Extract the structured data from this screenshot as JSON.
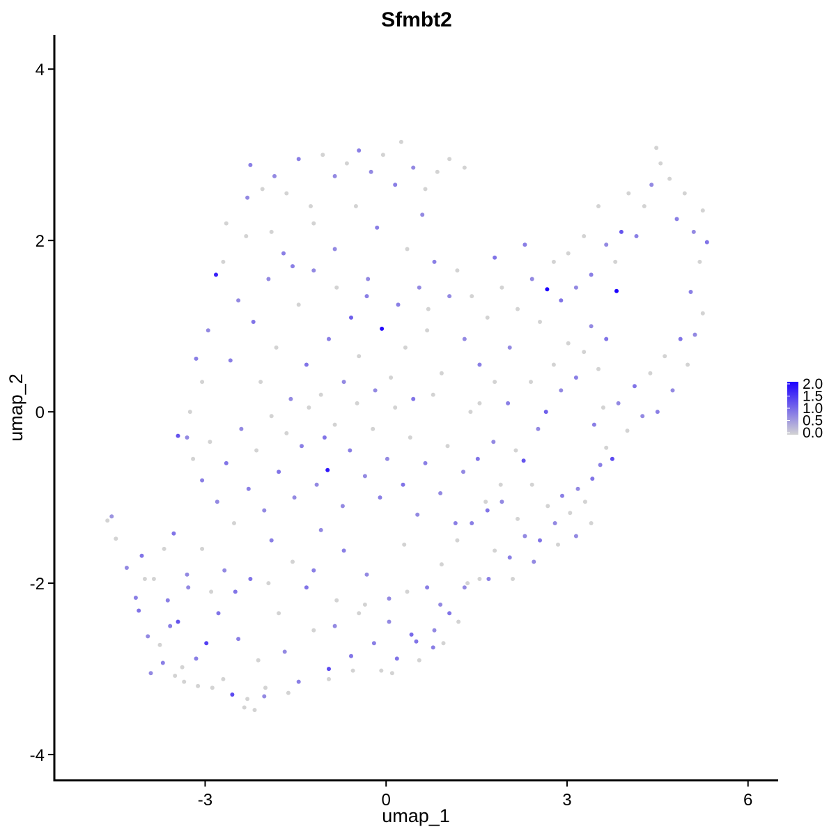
{
  "chart_data": {
    "type": "scatter",
    "title": "Sfmbt2",
    "xlabel": "umap_1",
    "ylabel": "umap_2",
    "xlim": [
      -5.5,
      6.5
    ],
    "ylim": [
      -4.3,
      4.4
    ],
    "xticks": [
      -3,
      0,
      3,
      6
    ],
    "xtick_labels": [
      "-3",
      "0",
      "3",
      "6"
    ],
    "yticks": [
      -4,
      -2,
      0,
      2,
      4
    ],
    "ytick_labels": [
      "-4",
      "-2",
      "0",
      "2",
      "4"
    ],
    "grid": false,
    "legend": {
      "placement": "right",
      "type": "colorbar",
      "labels": [
        "2.0",
        "1.5",
        "1.0",
        "0.5",
        "0.0"
      ],
      "values": [
        2.0,
        1.5,
        1.0,
        0.5,
        0.0
      ],
      "low_color": "#d3d3d3",
      "high_color": "#1c00ff"
    },
    "points": [
      [
        -4.62,
        -1.27,
        0.0
      ],
      [
        -4.55,
        -1.22,
        0.6
      ],
      [
        -4.48,
        -1.48,
        0.0
      ],
      [
        -4.3,
        -1.82,
        0.7
      ],
      [
        -4.15,
        -2.17,
        0.8
      ],
      [
        -4.05,
        -1.68,
        0.9
      ],
      [
        -3.95,
        -2.62,
        0.7
      ],
      [
        -3.85,
        -1.95,
        0.0
      ],
      [
        -3.75,
        -2.72,
        0.0
      ],
      [
        -3.62,
        -2.2,
        0.8
      ],
      [
        -3.52,
        -1.42,
        0.9
      ],
      [
        -3.45,
        -2.45,
        1.2
      ],
      [
        -3.38,
        -2.98,
        0.0
      ],
      [
        -3.28,
        -2.05,
        0.7
      ],
      [
        -3.15,
        -2.88,
        0.8
      ],
      [
        -3.05,
        -1.6,
        0.0
      ],
      [
        -2.98,
        -2.7,
        1.4
      ],
      [
        -2.88,
        -3.22,
        0.0
      ],
      [
        -2.78,
        -2.35,
        0.9
      ],
      [
        -2.68,
        -1.85,
        0.7
      ],
      [
        -2.55,
        -3.3,
        1.3
      ],
      [
        -2.45,
        -2.65,
        0.8
      ],
      [
        -2.35,
        -3.45,
        0.0
      ],
      [
        -2.25,
        -1.95,
        0.9
      ],
      [
        -2.12,
        -2.9,
        0.0
      ],
      [
        -2.02,
        -3.32,
        0.7
      ],
      [
        -1.9,
        -1.5,
        0.8
      ],
      [
        -1.78,
        -2.35,
        0.0
      ],
      [
        -1.68,
        -2.8,
        0.7
      ],
      [
        -1.55,
        -1.75,
        0.0
      ],
      [
        -1.45,
        -3.15,
        0.8
      ],
      [
        -1.32,
        -2.05,
        0.9
      ],
      [
        -1.2,
        -2.55,
        0.0
      ],
      [
        -1.08,
        -1.38,
        0.7
      ],
      [
        -0.95,
        -3.0,
        1.3
      ],
      [
        -0.82,
        -2.2,
        0.0
      ],
      [
        -0.7,
        -1.62,
        0.8
      ],
      [
        -0.58,
        -2.85,
        0.9
      ],
      [
        -0.45,
        -2.35,
        0.0
      ],
      [
        -0.32,
        -1.9,
        0.7
      ],
      [
        -0.2,
        -2.7,
        0.8
      ],
      [
        -0.08,
        -3.02,
        0.0
      ],
      [
        0.05,
        -2.18,
        0.7
      ],
      [
        0.18,
        -2.88,
        0.9
      ],
      [
        0.3,
        -1.55,
        0.0
      ],
      [
        0.42,
        -2.6,
        1.0
      ],
      [
        0.55,
        -2.9,
        0.0
      ],
      [
        0.68,
        -2.05,
        0.8
      ],
      [
        0.8,
        -2.55,
        0.7
      ],
      [
        0.92,
        -1.78,
        0.0
      ],
      [
        1.05,
        -2.35,
        0.9
      ],
      [
        1.18,
        -1.5,
        0.0
      ],
      [
        1.3,
        -2.05,
        0.7
      ],
      [
        1.42,
        -1.3,
        0.8
      ],
      [
        1.55,
        -1.95,
        0.0
      ],
      [
        1.68,
        -1.15,
        0.9
      ],
      [
        1.8,
        -1.62,
        0.0
      ],
      [
        1.92,
        -1.05,
        0.7
      ],
      [
        2.05,
        -1.7,
        0.8
      ],
      [
        2.18,
        -1.25,
        0.0
      ],
      [
        2.3,
        -1.45,
        0.7
      ],
      [
        2.42,
        -0.85,
        0.0
      ],
      [
        2.55,
        -1.5,
        0.9
      ],
      [
        2.68,
        -1.1,
        0.0
      ],
      [
        2.8,
        -1.3,
        0.7
      ],
      [
        2.92,
        -0.98,
        0.8
      ],
      [
        3.05,
        -1.18,
        0.0
      ],
      [
        3.18,
        -0.9,
        0.7
      ],
      [
        3.3,
        -1.05,
        0.0
      ],
      [
        3.42,
        -0.78,
        0.9
      ],
      [
        3.55,
        -0.62,
        0.8
      ],
      [
        3.65,
        -0.42,
        0.0
      ],
      [
        3.75,
        -0.55,
        1.3
      ],
      [
        3.45,
        -0.15,
        0.8
      ],
      [
        3.6,
        0.05,
        0.0
      ],
      [
        3.85,
        0.1,
        0.7
      ],
      [
        4.0,
        -0.22,
        0.0
      ],
      [
        4.12,
        0.3,
        0.9
      ],
      [
        4.25,
        -0.05,
        0.7
      ],
      [
        4.38,
        0.45,
        0.0
      ],
      [
        4.5,
        0.0,
        0.8
      ],
      [
        4.62,
        0.65,
        0.0
      ],
      [
        4.75,
        0.25,
        0.7
      ],
      [
        4.88,
        0.85,
        0.9
      ],
      [
        5.0,
        0.55,
        0.0
      ],
      [
        5.12,
        0.9,
        0.7
      ],
      [
        5.25,
        1.15,
        0.0
      ],
      [
        5.05,
        1.4,
        0.8
      ],
      [
        5.2,
        1.75,
        0.0
      ],
      [
        5.32,
        1.98,
        0.9
      ],
      [
        5.25,
        2.35,
        0.0
      ],
      [
        5.1,
        2.1,
        0.7
      ],
      [
        4.95,
        2.55,
        0.0
      ],
      [
        4.82,
        2.25,
        0.8
      ],
      [
        4.7,
        2.72,
        0.0
      ],
      [
        4.55,
        2.9,
        0.0
      ],
      [
        4.48,
        3.08,
        0.0
      ],
      [
        4.4,
        2.65,
        0.7
      ],
      [
        4.28,
        2.4,
        0.0
      ],
      [
        4.15,
        2.05,
        0.8
      ],
      [
        4.02,
        2.55,
        0.0
      ],
      [
        3.9,
        2.1,
        1.2
      ],
      [
        3.8,
        1.75,
        0.0
      ],
      [
        3.82,
        1.41,
        2.0
      ],
      [
        3.65,
        1.95,
        0.7
      ],
      [
        3.52,
        2.4,
        0.0
      ],
      [
        3.4,
        1.6,
        0.8
      ],
      [
        3.28,
        2.05,
        0.0
      ],
      [
        3.15,
        1.45,
        0.7
      ],
      [
        3.02,
        1.85,
        0.0
      ],
      [
        2.9,
        1.3,
        0.9
      ],
      [
        2.78,
        1.75,
        0.0
      ],
      [
        2.67,
        1.43,
        2.0
      ],
      [
        2.55,
        1.05,
        0.0
      ],
      [
        2.42,
        1.55,
        0.7
      ],
      [
        2.3,
        1.95,
        0.8
      ],
      [
        2.18,
        1.2,
        0.0
      ],
      [
        2.05,
        0.75,
        0.7
      ],
      [
        1.92,
        1.45,
        0.0
      ],
      [
        1.8,
        1.8,
        0.9
      ],
      [
        1.68,
        1.1,
        0.0
      ],
      [
        1.55,
        0.55,
        0.8
      ],
      [
        1.42,
        1.35,
        0.0
      ],
      [
        1.3,
        0.85,
        0.7
      ],
      [
        1.18,
        1.65,
        0.0
      ],
      [
        1.05,
        1.35,
        0.7
      ],
      [
        0.92,
        0.45,
        0.0
      ],
      [
        0.8,
        1.75,
        0.8
      ],
      [
        0.68,
        0.95,
        0.0
      ],
      [
        0.55,
        1.45,
        0.7
      ],
      [
        0.45,
        0.15,
        0.9
      ],
      [
        0.32,
        0.75,
        0.0
      ],
      [
        0.2,
        1.25,
        0.8
      ],
      [
        0.08,
        0.4,
        0.0
      ],
      [
        -0.07,
        0.97,
        1.9
      ],
      [
        -0.18,
        0.25,
        0.7
      ],
      [
        -0.32,
        1.35,
        0.8
      ],
      [
        -0.45,
        0.65,
        0.0
      ],
      [
        -0.58,
        1.1,
        1.1
      ],
      [
        -0.7,
        0.35,
        0.7
      ],
      [
        -0.82,
        1.45,
        0.0
      ],
      [
        -0.95,
        0.85,
        0.8
      ],
      [
        -1.08,
        0.2,
        0.0
      ],
      [
        -1.2,
        1.65,
        0.7
      ],
      [
        -1.32,
        0.55,
        0.9
      ],
      [
        -1.45,
        1.25,
        0.0
      ],
      [
        -1.58,
        0.15,
        0.7
      ],
      [
        -1.7,
        1.85,
        0.8
      ],
      [
        -1.82,
        0.75,
        0.0
      ],
      [
        -1.95,
        1.55,
        0.7
      ],
      [
        -2.08,
        0.35,
        0.0
      ],
      [
        -2.2,
        1.05,
        0.9
      ],
      [
        -2.32,
        2.05,
        0.0
      ],
      [
        -2.45,
        1.3,
        0.7
      ],
      [
        -2.58,
        0.6,
        0.8
      ],
      [
        -2.7,
        1.75,
        0.0
      ],
      [
        -2.82,
        1.6,
        1.7
      ],
      [
        -2.95,
        0.95,
        0.7
      ],
      [
        -3.05,
        0.35,
        0.0
      ],
      [
        -3.15,
        0.62,
        0.8
      ],
      [
        -3.25,
        0.0,
        0.0
      ],
      [
        -3.3,
        -0.3,
        0.7
      ],
      [
        -3.45,
        -0.28,
        1.2
      ],
      [
        -3.2,
        -0.55,
        0.0
      ],
      [
        -3.05,
        -0.8,
        0.8
      ],
      [
        -2.92,
        -0.35,
        0.0
      ],
      [
        -2.8,
        -1.05,
        0.7
      ],
      [
        -2.65,
        -0.6,
        0.9
      ],
      [
        -2.52,
        -1.3,
        0.0
      ],
      [
        -2.4,
        -0.2,
        0.7
      ],
      [
        -2.28,
        -0.9,
        0.8
      ],
      [
        -2.15,
        -0.45,
        0.0
      ],
      [
        -2.02,
        -1.15,
        0.7
      ],
      [
        -1.9,
        -0.05,
        0.0
      ],
      [
        -1.78,
        -0.7,
        0.9
      ],
      [
        -1.65,
        -0.25,
        0.0
      ],
      [
        -1.52,
        -1.0,
        0.7
      ],
      [
        -1.4,
        -0.4,
        0.8
      ],
      [
        -1.28,
        0.05,
        0.0
      ],
      [
        -1.15,
        -0.85,
        0.7
      ],
      [
        -1.02,
        -0.3,
        0.9
      ],
      [
        -0.97,
        -0.68,
        1.8
      ],
      [
        -0.85,
        -0.15,
        0.0
      ],
      [
        -0.72,
        -1.1,
        0.7
      ],
      [
        -0.6,
        -0.45,
        0.8
      ],
      [
        -0.48,
        0.1,
        0.0
      ],
      [
        -0.35,
        -0.75,
        0.7
      ],
      [
        -0.22,
        -0.2,
        0.0
      ],
      [
        -0.1,
        -1.0,
        0.8
      ],
      [
        0.02,
        -0.55,
        0.7
      ],
      [
        0.15,
        0.05,
        0.0
      ],
      [
        0.28,
        -0.85,
        0.9
      ],
      [
        0.4,
        -0.3,
        0.0
      ],
      [
        0.52,
        -1.2,
        0.7
      ],
      [
        0.65,
        -0.6,
        0.8
      ],
      [
        0.78,
        0.2,
        0.0
      ],
      [
        0.9,
        -0.95,
        0.7
      ],
      [
        1.02,
        -0.4,
        0.0
      ],
      [
        1.15,
        -1.3,
        0.8
      ],
      [
        1.28,
        -0.7,
        0.7
      ],
      [
        1.4,
        0.0,
        0.0
      ],
      [
        1.52,
        -0.55,
        0.9
      ],
      [
        1.65,
        -1.05,
        0.0
      ],
      [
        1.78,
        -0.35,
        0.7
      ],
      [
        1.9,
        -0.85,
        0.0
      ],
      [
        2.02,
        0.1,
        0.8
      ],
      [
        2.15,
        -0.45,
        0.0
      ],
      [
        2.28,
        -0.57,
        1.2
      ],
      [
        2.4,
        0.35,
        0.0
      ],
      [
        2.52,
        -0.2,
        0.7
      ],
      [
        2.65,
        0.0,
        1.1
      ],
      [
        2.78,
        0.55,
        0.0
      ],
      [
        2.9,
        0.25,
        0.7
      ],
      [
        3.02,
        0.8,
        0.0
      ],
      [
        3.15,
        0.4,
        0.8
      ],
      [
        3.28,
        0.7,
        0.0
      ],
      [
        3.4,
        1.0,
        0.7
      ],
      [
        3.52,
        0.5,
        0.0
      ],
      [
        3.65,
        0.85,
        0.9
      ],
      [
        -2.25,
        2.88,
        0.8
      ],
      [
        -2.05,
        2.6,
        0.0
      ],
      [
        -1.85,
        2.75,
        0.7
      ],
      [
        -1.65,
        2.55,
        0.0
      ],
      [
        -1.45,
        2.95,
        0.8
      ],
      [
        -1.25,
        2.4,
        0.0
      ],
      [
        -1.05,
        3.0,
        0.0
      ],
      [
        -0.85,
        2.75,
        0.7
      ],
      [
        -0.65,
        2.9,
        0.0
      ],
      [
        -0.45,
        3.05,
        0.8
      ],
      [
        -0.25,
        2.8,
        0.7
      ],
      [
        -0.05,
        3.0,
        0.0
      ],
      [
        0.15,
        2.65,
        0.8
      ],
      [
        0.25,
        3.15,
        0.0
      ],
      [
        0.45,
        2.85,
        0.7
      ],
      [
        0.65,
        2.6,
        0.0
      ],
      [
        0.85,
        2.8,
        0.0
      ],
      [
        1.05,
        2.95,
        0.0
      ],
      [
        1.3,
        2.85,
        0.0
      ],
      [
        0.6,
        2.3,
        0.7
      ],
      [
        0.35,
        1.9,
        0.0
      ],
      [
        -0.15,
        2.15,
        0.8
      ],
      [
        -0.5,
        2.4,
        0.0
      ],
      [
        -0.85,
        1.9,
        0.7
      ],
      [
        -1.2,
        2.2,
        0.0
      ],
      [
        -1.55,
        1.7,
        0.8
      ],
      [
        -1.9,
        2.1,
        0.0
      ],
      [
        -2.3,
        2.5,
        0.7
      ],
      [
        -2.65,
        2.2,
        0.0
      ],
      [
        -0.3,
        1.55,
        0.7
      ],
      [
        0.7,
        1.2,
        0.0
      ],
      [
        1.55,
        0.1,
        0.0
      ],
      [
        1.8,
        0.35,
        0.0
      ],
      [
        -3.9,
        -3.05,
        0.7
      ],
      [
        -3.7,
        -2.93,
        0.8
      ],
      [
        -3.5,
        -3.08,
        0.0
      ],
      [
        -3.35,
        -3.15,
        0.0
      ],
      [
        -3.12,
        -3.2,
        0.0
      ],
      [
        -2.7,
        -3.12,
        0.0
      ],
      [
        -2.3,
        -3.35,
        0.0
      ],
      [
        -2.18,
        -3.48,
        0.0
      ],
      [
        -2.0,
        -3.22,
        0.0
      ],
      [
        -1.62,
        -3.28,
        0.0
      ],
      [
        -0.95,
        -3.12,
        0.0
      ],
      [
        -0.55,
        -3.02,
        0.0
      ],
      [
        0.1,
        -3.05,
        0.0
      ],
      [
        0.5,
        -2.68,
        0.9
      ],
      [
        0.78,
        -2.75,
        0.8
      ],
      [
        0.95,
        -2.7,
        0.0
      ],
      [
        1.2,
        -2.45,
        0.0
      ],
      [
        -4.1,
        -2.32,
        0.9
      ],
      [
        -4.0,
        -1.95,
        0.0
      ],
      [
        -3.68,
        -1.6,
        0.0
      ],
      [
        -3.58,
        -2.5,
        0.8
      ],
      [
        -3.3,
        -1.9,
        0.7
      ],
      [
        -2.9,
        -2.1,
        0.0
      ],
      [
        -2.5,
        -2.1,
        0.9
      ],
      [
        -1.95,
        -2.0,
        0.0
      ],
      [
        -1.2,
        -1.85,
        0.8
      ],
      [
        -0.85,
        -2.5,
        0.7
      ],
      [
        -0.35,
        -2.25,
        0.0
      ],
      [
        0.05,
        -2.45,
        0.7
      ],
      [
        0.35,
        -2.1,
        0.0
      ],
      [
        0.9,
        -2.25,
        0.7
      ],
      [
        1.35,
        -2.0,
        0.0
      ],
      [
        1.7,
        -1.95,
        0.8
      ],
      [
        2.1,
        -1.95,
        0.0
      ],
      [
        2.45,
        -1.75,
        0.7
      ],
      [
        2.85,
        -1.55,
        0.0
      ],
      [
        3.15,
        -1.45,
        0.7
      ],
      [
        3.4,
        -1.3,
        0.0
      ]
    ]
  }
}
